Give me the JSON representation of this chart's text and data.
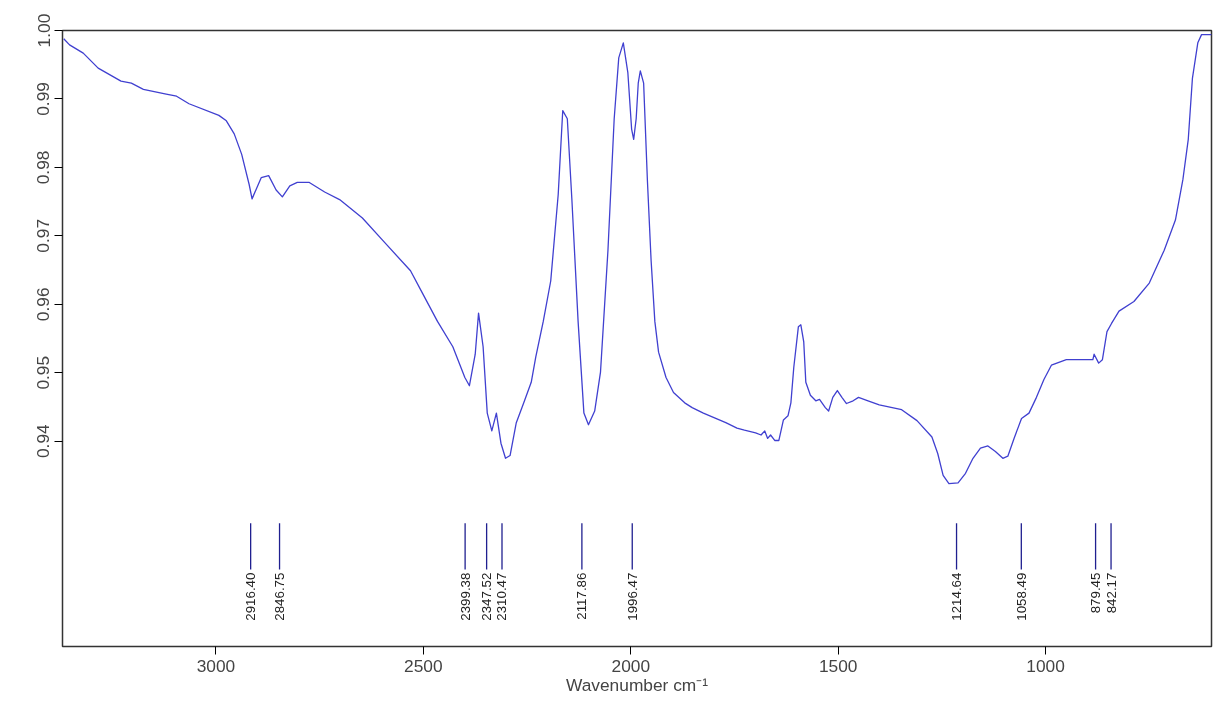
{
  "chart_data": {
    "type": "line",
    "xlabel": "Wavenumber cm⁻¹",
    "xlim": [
      3370,
      600
    ],
    "ylim": [
      0.91,
      1.0
    ],
    "xticks": [
      3000,
      2500,
      2000,
      1500,
      1000
    ],
    "yticks": [
      {
        "value": 0.94,
        "label": "0.94"
      },
      {
        "value": 0.95,
        "label": "0.95"
      },
      {
        "value": 0.96,
        "label": "0.96"
      },
      {
        "value": 0.97,
        "label": "0.97"
      },
      {
        "value": 0.98,
        "label": "0.98"
      },
      {
        "value": 0.99,
        "label": "0.99"
      },
      {
        "value": 1.0,
        "label": "1.00"
      }
    ],
    "grid": false,
    "marker": "none",
    "line_style": "solid",
    "series": [
      {
        "color": "#4040d0",
        "x": [
          3367,
          3353,
          3320,
          3284,
          3229,
          3204,
          3175,
          3120,
          3095,
          3065,
          2993,
          2975,
          2956,
          2938,
          2920,
          2913,
          2891,
          2873,
          2855,
          2840,
          2822,
          2804,
          2775,
          2738,
          2702,
          2647,
          2593,
          2531,
          2502,
          2466,
          2429,
          2400,
          2389,
          2375,
          2367,
          2356,
          2346,
          2335,
          2324,
          2313,
          2302,
          2291,
          2276,
          2258,
          2240,
          2229,
          2211,
          2193,
          2175,
          2164,
          2153,
          2142,
          2127,
          2113,
          2102,
          2087,
          2073,
          2055,
          2040,
          2029,
          2018,
          2007,
          1998,
          1993,
          1987,
          1982,
          1977,
          1969,
          1960,
          1951,
          1942,
          1933,
          1915,
          1897,
          1870,
          1852,
          1825,
          1798,
          1771,
          1744,
          1726,
          1699,
          1686,
          1677,
          1670,
          1663,
          1653,
          1643,
          1632,
          1621,
          1614,
          1607,
          1596,
          1590,
          1583,
          1578,
          1567,
          1554,
          1545,
          1531,
          1523,
          1513,
          1502,
          1491,
          1480,
          1464,
          1451,
          1428,
          1401,
          1347,
          1310,
          1274,
          1260,
          1247,
          1233,
          1211,
          1193,
          1175,
          1157,
          1139,
          1121,
          1103,
          1091,
          1076,
          1058,
          1040,
          1022,
          1004,
          986,
          950,
          886,
          883,
          872,
          863,
          852,
          841,
          823,
          787,
          750,
          714,
          687,
          669,
          656,
          646,
          633,
          624,
          600
        ],
        "values": [
          0.9988,
          0.9979,
          0.9967,
          0.9945,
          0.9926,
          0.9923,
          0.9914,
          0.9907,
          0.9904,
          0.9893,
          0.9876,
          0.9868,
          0.9849,
          0.9819,
          0.9775,
          0.9754,
          0.9785,
          0.9788,
          0.9767,
          0.9757,
          0.9773,
          0.9778,
          0.9778,
          0.9764,
          0.9753,
          0.9726,
          0.969,
          0.9649,
          0.9616,
          0.9575,
          0.9538,
          0.9493,
          0.9481,
          0.9527,
          0.9587,
          0.9538,
          0.9441,
          0.9415,
          0.9441,
          0.9397,
          0.9375,
          0.9379,
          0.9427,
          0.9456,
          0.9486,
          0.9523,
          0.9575,
          0.9634,
          0.976,
          0.9883,
          0.9871,
          0.9753,
          0.9575,
          0.9441,
          0.9424,
          0.9444,
          0.9501,
          0.9679,
          0.9871,
          0.996,
          0.9982,
          0.9938,
          0.9856,
          0.9841,
          0.9871,
          0.9923,
          0.9941,
          0.9923,
          0.9782,
          0.9664,
          0.9575,
          0.953,
          0.9493,
          0.9471,
          0.9456,
          0.9449,
          0.9441,
          0.9434,
          0.9427,
          0.9419,
          0.9416,
          0.9412,
          0.9409,
          0.9415,
          0.9404,
          0.9409,
          0.9401,
          0.9401,
          0.9431,
          0.9437,
          0.9456,
          0.9508,
          0.9567,
          0.957,
          0.9545,
          0.9486,
          0.9467,
          0.9459,
          0.9461,
          0.9449,
          0.9444,
          0.9464,
          0.9474,
          0.9464,
          0.9455,
          0.9459,
          0.9464,
          0.9459,
          0.9453,
          0.9446,
          0.943,
          0.9406,
          0.9382,
          0.935,
          0.9338,
          0.9339,
          0.9353,
          0.9375,
          0.939,
          0.9393,
          0.9385,
          0.9375,
          0.9378,
          0.9404,
          0.9433,
          0.9441,
          0.9464,
          0.949,
          0.9511,
          0.9519,
          0.9519,
          0.9527,
          0.9514,
          0.9519,
          0.956,
          0.9572,
          0.959,
          0.9604,
          0.9631,
          0.9679,
          0.9723,
          0.9782,
          0.9841,
          0.993,
          0.9982,
          0.9994,
          0.9994
        ]
      }
    ],
    "annotations": [
      {
        "text": "2916.40",
        "x": 2916.4
      },
      {
        "text": "2846.75",
        "x": 2846.75
      },
      {
        "text": "2399.38",
        "x": 2399.38
      },
      {
        "text": "2347.52",
        "x": 2347.52
      },
      {
        "text": "2310.47",
        "x": 2310.47
      },
      {
        "text": "2117.86",
        "x": 2117.86
      },
      {
        "text": "1996.47",
        "x": 1996.47
      },
      {
        "text": "1214.64",
        "x": 1214.64
      },
      {
        "text": "1058.49",
        "x": 1058.49
      },
      {
        "text": "879.45",
        "x": 879.45
      },
      {
        "text": "842.17",
        "x": 842.17
      }
    ]
  }
}
